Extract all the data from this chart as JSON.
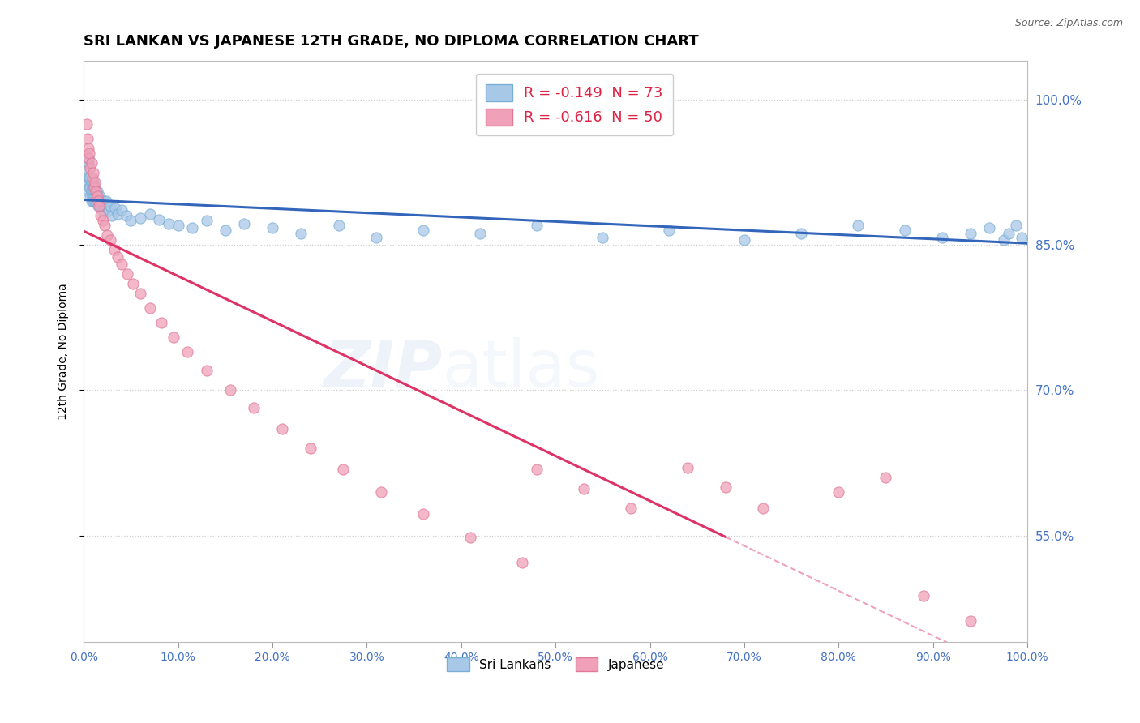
{
  "title": "SRI LANKAN VS JAPANESE 12TH GRADE, NO DIPLOMA CORRELATION CHART",
  "source": "Source: ZipAtlas.com",
  "ylabel": "12th Grade, No Diploma",
  "sri_lankan_color": "#a8c8e8",
  "sri_lankan_edge": "#7aaed4",
  "japanese_color": "#f0a0b8",
  "japanese_edge": "#e07898",
  "sri_lankan_line_color": "#3366bb",
  "japanese_line_color": "#dd3366",
  "axis_color": "#4472c4",
  "grid_color": "#cccccc",
  "background_color": "#ffffff",
  "title_fontsize": 13,
  "xlim": [
    0.0,
    1.0
  ],
  "ylim": [
    0.44,
    1.04
  ],
  "yticks": [
    0.55,
    0.7,
    0.85,
    1.0
  ],
  "ytick_labels": [
    "55.0%",
    "70.0%",
    "85.0%",
    "100.0%"
  ],
  "xticks": [
    0.0,
    0.1,
    0.2,
    0.3,
    0.4,
    0.5,
    0.6,
    0.7,
    0.8,
    0.9,
    1.0
  ],
  "xtick_labels": [
    "0.0%",
    "10.0%",
    "20.0%",
    "30.0%",
    "40.0%",
    "50.0%",
    "60.0%",
    "70.0%",
    "80.0%",
    "90.0%",
    "100.0%"
  ],
  "sri_lankan_R": -0.149,
  "sri_lankan_N": 73,
  "japanese_R": -0.616,
  "japanese_N": 50,
  "watermark": "ZIPatlas",
  "sri_lankans_x": [
    0.003,
    0.004,
    0.004,
    0.005,
    0.005,
    0.005,
    0.006,
    0.006,
    0.007,
    0.007,
    0.007,
    0.008,
    0.008,
    0.008,
    0.009,
    0.009,
    0.01,
    0.01,
    0.01,
    0.011,
    0.011,
    0.012,
    0.012,
    0.013,
    0.013,
    0.014,
    0.015,
    0.015,
    0.016,
    0.017,
    0.018,
    0.019,
    0.02,
    0.021,
    0.022,
    0.024,
    0.026,
    0.028,
    0.03,
    0.033,
    0.036,
    0.04,
    0.045,
    0.05,
    0.06,
    0.07,
    0.08,
    0.09,
    0.1,
    0.115,
    0.13,
    0.15,
    0.17,
    0.2,
    0.23,
    0.27,
    0.31,
    0.36,
    0.42,
    0.48,
    0.55,
    0.62,
    0.7,
    0.76,
    0.82,
    0.87,
    0.91,
    0.94,
    0.96,
    0.975,
    0.98,
    0.988,
    0.994
  ],
  "sri_lankans_y": [
    0.93,
    0.915,
    0.92,
    0.905,
    0.935,
    0.94,
    0.91,
    0.92,
    0.9,
    0.91,
    0.92,
    0.905,
    0.915,
    0.895,
    0.91,
    0.9,
    0.905,
    0.895,
    0.915,
    0.9,
    0.91,
    0.895,
    0.905,
    0.9,
    0.895,
    0.905,
    0.9,
    0.89,
    0.895,
    0.9,
    0.89,
    0.895,
    0.885,
    0.895,
    0.89,
    0.895,
    0.885,
    0.89,
    0.88,
    0.888,
    0.882,
    0.886,
    0.88,
    0.875,
    0.878,
    0.882,
    0.876,
    0.872,
    0.87,
    0.868,
    0.875,
    0.865,
    0.872,
    0.868,
    0.862,
    0.87,
    0.858,
    0.865,
    0.862,
    0.87,
    0.858,
    0.865,
    0.855,
    0.862,
    0.87,
    0.865,
    0.858,
    0.862,
    0.868,
    0.855,
    0.862,
    0.87,
    0.858
  ],
  "japanese_x": [
    0.003,
    0.004,
    0.005,
    0.005,
    0.006,
    0.007,
    0.008,
    0.009,
    0.01,
    0.011,
    0.012,
    0.013,
    0.014,
    0.015,
    0.016,
    0.018,
    0.02,
    0.022,
    0.025,
    0.028,
    0.032,
    0.036,
    0.04,
    0.046,
    0.052,
    0.06,
    0.07,
    0.082,
    0.095,
    0.11,
    0.13,
    0.155,
    0.18,
    0.21,
    0.24,
    0.275,
    0.315,
    0.36,
    0.41,
    0.465,
    0.48,
    0.53,
    0.58,
    0.64,
    0.68,
    0.72,
    0.8,
    0.85,
    0.89,
    0.94
  ],
  "japanese_y": [
    0.975,
    0.96,
    0.95,
    0.94,
    0.945,
    0.93,
    0.935,
    0.92,
    0.925,
    0.91,
    0.915,
    0.905,
    0.9,
    0.895,
    0.89,
    0.88,
    0.875,
    0.87,
    0.86,
    0.855,
    0.845,
    0.838,
    0.83,
    0.82,
    0.81,
    0.8,
    0.785,
    0.77,
    0.755,
    0.74,
    0.72,
    0.7,
    0.682,
    0.66,
    0.64,
    0.618,
    0.595,
    0.572,
    0.548,
    0.522,
    0.618,
    0.598,
    0.578,
    0.62,
    0.6,
    0.578,
    0.595,
    0.61,
    0.488,
    0.462
  ],
  "jap_line_start_x": 0.0,
  "jap_line_end_solid_x": 0.68,
  "jap_line_end_x": 1.0
}
